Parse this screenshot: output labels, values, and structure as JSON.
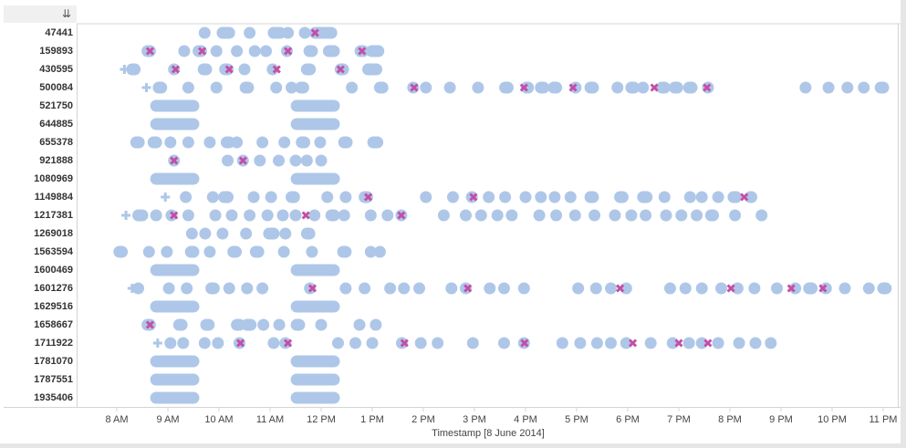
{
  "toolbar": {
    "sort_icon": "sort-descending-icon",
    "sort_glyph": "⇊"
  },
  "chart_data": {
    "type": "scatter",
    "title": "",
    "xlabel": "Timestamp [8 June 2014]",
    "ylabel": "",
    "xlim_hours": [
      7.55,
      23.0
    ],
    "x_ticks": [
      {
        "hour": 8,
        "label": "8 AM"
      },
      {
        "hour": 9,
        "label": "9 AM"
      },
      {
        "hour": 10,
        "label": "10 AM"
      },
      {
        "hour": 11,
        "label": "11 AM"
      },
      {
        "hour": 12,
        "label": "12 PM"
      },
      {
        "hour": 13,
        "label": "1 PM"
      },
      {
        "hour": 14,
        "label": "2 PM"
      },
      {
        "hour": 15,
        "label": "3 PM"
      },
      {
        "hour": 16,
        "label": "4 PM"
      },
      {
        "hour": 17,
        "label": "5 PM"
      },
      {
        "hour": 18,
        "label": "6 PM"
      },
      {
        "hour": 19,
        "label": "7 PM"
      },
      {
        "hour": 20,
        "label": "8 PM"
      },
      {
        "hour": 21,
        "label": "9 PM"
      },
      {
        "hour": 22,
        "label": "10 PM"
      },
      {
        "hour": 23,
        "label": "11 PM"
      }
    ],
    "colors": {
      "event": "#aec7e8",
      "error": "#c44ea6",
      "start": "#aec7e8",
      "axis": "#d4d4d4"
    },
    "legend": "none",
    "rows": [
      {
        "id": "47441",
        "events": [
          [
            9.72
          ],
          [
            10.07,
            10.2
          ],
          [
            10.6
          ],
          [
            11.07,
            11.2
          ],
          [
            11.35
          ],
          [
            11.68
          ],
          [
            11.88,
            12.2
          ]
        ],
        "errors": [
          11.88
        ],
        "starts": []
      },
      {
        "id": "159893",
        "events": [
          [
            8.6,
            8.65
          ],
          [
            9.32
          ],
          [
            9.6,
            9.65
          ],
          [
            9.95
          ],
          [
            10.35
          ],
          [
            10.7
          ],
          [
            10.92
          ],
          [
            11.33
          ],
          [
            11.77,
            11.82
          ],
          [
            12.15,
            12.25
          ],
          [
            12.77,
            12.82
          ],
          [
            12.99,
            13.12
          ]
        ],
        "errors": [
          8.65,
          9.67,
          11.35,
          12.8
        ],
        "starts": []
      },
      {
        "id": "430595",
        "events": [
          [
            8.3,
            8.35
          ],
          [
            9.12
          ],
          [
            9.7,
            9.75
          ],
          [
            10.12,
            10.17
          ],
          [
            10.5
          ],
          [
            11.05
          ],
          [
            11.72,
            11.78
          ],
          [
            12.38,
            12.43
          ],
          [
            12.92,
            13.08
          ]
        ],
        "errors": [
          9.15,
          10.2,
          11.13,
          12.38
        ],
        "starts": [
          8.15
        ]
      },
      {
        "id": "500084",
        "events": [
          [
            8.82,
            8.87
          ],
          [
            9.4
          ],
          [
            9.95
          ],
          [
            10.52,
            10.57
          ],
          [
            11.12
          ],
          [
            11.42
          ],
          [
            11.6,
            11.65
          ],
          [
            12.6
          ],
          [
            13.15,
            13.2
          ],
          [
            13.8
          ],
          [
            14.05
          ],
          [
            14.52
          ],
          [
            15.07
          ],
          [
            15.6,
            15.65
          ],
          [
            16.02,
            16.05
          ],
          [
            16.3,
            16.35
          ],
          [
            16.55,
            16.6
          ],
          [
            16.98
          ],
          [
            17.27,
            17.32
          ],
          [
            17.8
          ],
          [
            18.07,
            18.12
          ],
          [
            18.3
          ],
          [
            18.67,
            18.72
          ],
          [
            18.92,
            18.97
          ],
          [
            19.2,
            19.25
          ],
          [
            19.57
          ],
          [
            21.48
          ],
          [
            21.93
          ],
          [
            22.3
          ],
          [
            22.62
          ],
          [
            22.95,
            23.0
          ]
        ],
        "errors": [
          13.82,
          15.97,
          16.93,
          18.52,
          19.55
        ],
        "starts": [
          8.58
        ]
      },
      {
        "id": "521750",
        "events": [
          [
            8.77,
            9.5
          ],
          [
            11.52,
            12.25
          ]
        ],
        "errors": [],
        "starts": []
      },
      {
        "id": "644885",
        "events": [
          [
            8.77,
            9.5
          ],
          [
            11.52,
            12.25
          ]
        ],
        "errors": [],
        "starts": []
      },
      {
        "id": "655378",
        "events": [
          [
            8.38,
            8.43
          ],
          [
            8.72,
            8.77
          ],
          [
            9.05
          ],
          [
            9.4
          ],
          [
            9.82
          ],
          [
            10.15,
            10.2
          ],
          [
            10.35
          ],
          [
            10.85
          ],
          [
            11.28
          ],
          [
            11.62,
            11.67
          ],
          [
            11.98
          ],
          [
            12.45,
            12.5
          ],
          [
            13.02,
            13.1
          ]
        ],
        "errors": [],
        "starts": []
      },
      {
        "id": "921888",
        "events": [
          [
            9.12
          ],
          [
            10.17
          ],
          [
            10.47
          ],
          [
            10.8
          ],
          [
            11.17
          ],
          [
            11.5
          ],
          [
            11.72
          ],
          [
            12.0
          ]
        ],
        "errors": [
          9.12,
          10.47
        ],
        "starts": []
      },
      {
        "id": "1080969",
        "events": [
          [
            8.77,
            9.5
          ],
          [
            11.52,
            12.25
          ]
        ],
        "errors": [],
        "starts": []
      },
      {
        "id": "1149884",
        "events": [
          [
            9.35
          ],
          [
            9.88
          ],
          [
            10.1,
            10.17
          ],
          [
            10.68
          ],
          [
            11.02
          ],
          [
            11.42,
            11.47
          ],
          [
            12.12
          ],
          [
            12.48
          ],
          [
            12.85,
            12.9
          ],
          [
            14.05
          ],
          [
            14.58
          ],
          [
            14.95
          ],
          [
            15.28
          ],
          [
            15.6
          ],
          [
            16.0
          ],
          [
            16.3
          ],
          [
            16.57
          ],
          [
            16.88
          ],
          [
            17.27,
            17.32
          ],
          [
            17.85,
            17.9
          ],
          [
            18.3,
            18.37
          ],
          [
            18.72
          ],
          [
            19.22
          ],
          [
            19.45
          ],
          [
            19.77
          ],
          [
            20.07,
            20.12
          ],
          [
            20.4,
            20.42
          ]
        ],
        "errors": [
          12.92,
          14.98,
          20.28
        ],
        "starts": [
          8.95
        ]
      },
      {
        "id": "1217381",
        "events": [
          [
            8.42,
            8.5
          ],
          [
            8.77
          ],
          [
            9.07
          ],
          [
            9.4
          ],
          [
            9.93
          ],
          [
            10.25
          ],
          [
            10.6
          ],
          [
            10.95
          ],
          [
            11.25
          ],
          [
            11.5
          ],
          [
            11.87
          ],
          [
            12.2,
            12.25
          ],
          [
            12.45
          ],
          [
            12.97
          ],
          [
            13.3
          ],
          [
            13.57
          ],
          [
            14.4
          ],
          [
            14.83
          ],
          [
            15.13
          ],
          [
            15.45
          ],
          [
            15.73
          ],
          [
            16.27
          ],
          [
            16.6
          ],
          [
            16.97
          ],
          [
            17.35
          ],
          [
            17.75
          ],
          [
            18.07
          ],
          [
            18.35
          ],
          [
            18.75
          ],
          [
            19.05
          ],
          [
            19.35
          ],
          [
            19.63,
            19.67
          ],
          [
            20.1
          ],
          [
            20.62
          ]
        ],
        "errors": [
          9.12,
          11.7,
          13.57
        ],
        "starts": [
          8.18
        ]
      },
      {
        "id": "1269018",
        "events": [
          [
            9.47
          ],
          [
            9.73
          ],
          [
            10.07
          ],
          [
            10.53
          ],
          [
            10.98,
            11.07
          ],
          [
            11.3
          ],
          [
            11.72,
            11.77
          ]
        ],
        "errors": [],
        "starts": []
      },
      {
        "id": "1563594",
        "events": [
          [
            8.05,
            8.1
          ],
          [
            8.63
          ],
          [
            8.98
          ],
          [
            9.45,
            9.5
          ],
          [
            9.82
          ],
          [
            10.28,
            10.33
          ],
          [
            10.72,
            10.77
          ],
          [
            11.27
          ],
          [
            11.82
          ],
          [
            12.43,
            12.48
          ],
          [
            12.97
          ],
          [
            13.15
          ]
        ],
        "errors": [],
        "starts": []
      },
      {
        "id": "1600469",
        "events": [
          [
            8.77,
            9.5
          ],
          [
            11.52,
            12.25
          ]
        ],
        "errors": [],
        "starts": []
      },
      {
        "id": "1601276",
        "events": [
          [
            8.42
          ],
          [
            9.02
          ],
          [
            9.37
          ],
          [
            9.85,
            9.9
          ],
          [
            10.2
          ],
          [
            10.55
          ],
          [
            10.85
          ],
          [
            11.78
          ],
          [
            12.48
          ],
          [
            12.85
          ],
          [
            13.35
          ],
          [
            13.62
          ],
          [
            13.92
          ],
          [
            14.55
          ],
          [
            14.83
          ],
          [
            15.3
          ],
          [
            15.58
          ],
          [
            15.97
          ],
          [
            17.03
          ],
          [
            17.38
          ],
          [
            17.67
          ],
          [
            17.97
          ],
          [
            18.83
          ],
          [
            19.13
          ],
          [
            19.45
          ],
          [
            19.83
          ],
          [
            20.15
          ],
          [
            20.48
          ],
          [
            20.92
          ],
          [
            21.28
          ],
          [
            21.55,
            21.6
          ],
          [
            21.88
          ],
          [
            22.25
          ],
          [
            22.72
          ],
          [
            23.0,
            23.05
          ]
        ],
        "errors": [
          11.83,
          14.87,
          17.85,
          20.02,
          21.2,
          21.82
        ],
        "starts": [
          8.3
        ]
      },
      {
        "id": "1629516",
        "events": [
          [
            8.77,
            9.5
          ],
          [
            11.52,
            12.25
          ]
        ],
        "errors": [],
        "starts": []
      },
      {
        "id": "1658667",
        "events": [
          [
            8.6,
            8.65
          ],
          [
            9.22,
            9.27
          ],
          [
            9.75,
            9.8
          ],
          [
            10.35,
            10.4
          ],
          [
            10.55,
            10.62
          ],
          [
            10.87
          ],
          [
            11.18
          ],
          [
            11.52,
            11.57
          ],
          [
            12.0
          ],
          [
            12.75
          ],
          [
            13.07
          ]
        ],
        "errors": [
          8.65
        ],
        "starts": []
      },
      {
        "id": "1711922",
        "events": [
          [
            9.05
          ],
          [
            9.3
          ],
          [
            9.72
          ],
          [
            9.98
          ],
          [
            10.4
          ],
          [
            11.07
          ],
          [
            11.3
          ],
          [
            12.33
          ],
          [
            12.67
          ],
          [
            13.0
          ],
          [
            13.58
          ],
          [
            13.95
          ],
          [
            14.28
          ],
          [
            14.97
          ],
          [
            15.58
          ],
          [
            15.97
          ],
          [
            16.72
          ],
          [
            17.07
          ],
          [
            17.4
          ],
          [
            17.67
          ],
          [
            17.97
          ],
          [
            18.45
          ],
          [
            18.88
          ],
          [
            19.2
          ],
          [
            19.45
          ],
          [
            19.77
          ],
          [
            20.18
          ],
          [
            20.5
          ],
          [
            20.8
          ]
        ],
        "errors": [
          10.42,
          11.35,
          13.63,
          15.98,
          18.1,
          19.0,
          19.57
        ],
        "starts": [
          8.8
        ]
      },
      {
        "id": "1781070",
        "events": [
          [
            8.77,
            9.5
          ],
          [
            11.52,
            12.25
          ]
        ],
        "errors": [],
        "starts": []
      },
      {
        "id": "1787551",
        "events": [
          [
            8.77,
            9.5
          ],
          [
            11.52,
            12.25
          ]
        ],
        "errors": [],
        "starts": []
      },
      {
        "id": "1935406",
        "events": [
          [
            8.77,
            9.5
          ],
          [
            11.52,
            12.25
          ]
        ],
        "errors": [],
        "starts": []
      }
    ]
  }
}
